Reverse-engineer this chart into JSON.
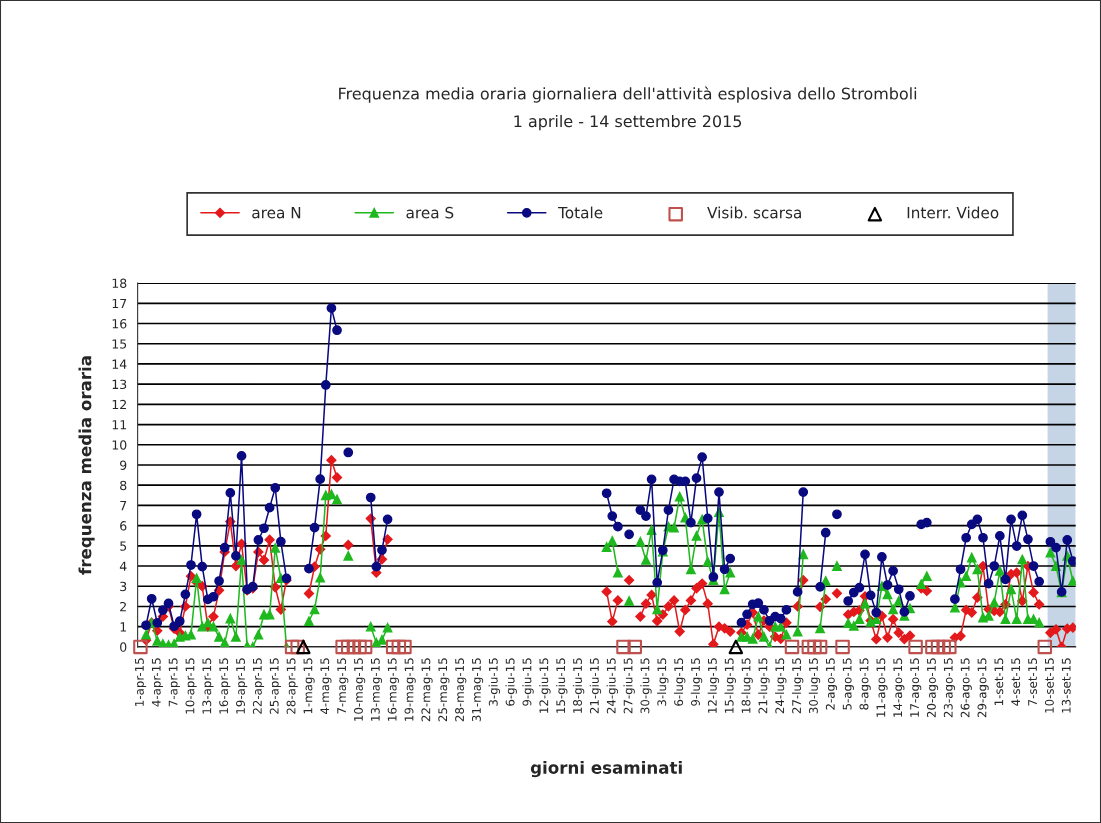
{
  "chart_data": {
    "type": "line",
    "title": "Frequenza media oraria giornaliera dell'attività esplosiva dello Stromboli",
    "subtitle": "1 aprile - 14 settembre 2015",
    "xlabel": "giorni esaminati",
    "ylabel": "frequenza media oraria",
    "x": [
      "2015-04-02",
      "2015-04-03",
      "2015-04-04",
      "2015-04-05",
      "2015-04-06",
      "2015-04-07",
      "2015-04-08",
      "2015-04-09",
      "2015-04-10",
      "2015-04-11",
      "2015-04-12",
      "2015-04-13",
      "2015-04-14",
      "2015-04-15",
      "2015-04-16",
      "2015-04-17",
      "2015-04-18",
      "2015-04-19",
      "2015-04-20",
      "2015-04-21",
      "2015-04-22",
      "2015-04-23",
      "2015-04-24",
      "2015-04-25",
      "2015-04-26",
      "2015-04-27",
      "2015-04-28",
      "2015-04-29",
      "2015-04-30",
      "2015-05-01",
      "2015-05-02",
      "2015-05-03",
      "2015-05-04",
      "2015-05-05",
      "2015-05-06",
      "2015-05-07",
      "2015-05-08",
      "2015-05-09",
      "2015-05-10",
      "2015-05-11",
      "2015-05-12",
      "2015-05-13",
      "2015-05-14",
      "2015-05-15",
      "2015-05-16",
      "2015-05-17",
      "2015-05-18",
      "2015-05-19",
      "2015-05-20",
      "2015-05-21",
      "2015-05-22",
      "2015-05-23",
      "2015-05-24",
      "2015-05-25",
      "2015-05-26",
      "2015-05-27",
      "2015-05-28",
      "2015-05-29",
      "2015-05-30",
      "2015-05-31",
      "2015-06-01",
      "2015-06-02",
      "2015-06-03",
      "2015-06-04",
      "2015-06-05",
      "2015-06-06",
      "2015-06-07",
      "2015-06-08",
      "2015-06-09",
      "2015-06-10",
      "2015-06-11",
      "2015-06-12",
      "2015-06-13",
      "2015-06-14",
      "2015-06-15",
      "2015-06-16",
      "2015-06-17",
      "2015-06-18",
      "2015-06-19",
      "2015-06-20",
      "2015-06-21",
      "2015-06-22",
      "2015-06-23",
      "2015-06-24",
      "2015-06-25",
      "2015-06-26",
      "2015-06-27",
      "2015-06-28",
      "2015-06-29",
      "2015-06-30",
      "2015-07-01",
      "2015-07-02",
      "2015-07-03",
      "2015-07-04",
      "2015-07-05",
      "2015-07-06",
      "2015-07-07",
      "2015-07-08",
      "2015-07-09",
      "2015-07-10",
      "2015-07-11",
      "2015-07-12",
      "2015-07-13",
      "2015-07-14",
      "2015-07-15",
      "2015-07-16",
      "2015-07-17",
      "2015-07-18",
      "2015-07-19",
      "2015-07-20",
      "2015-07-21",
      "2015-07-22",
      "2015-07-23",
      "2015-07-24",
      "2015-07-25",
      "2015-07-26",
      "2015-07-27",
      "2015-07-28",
      "2015-07-29",
      "2015-07-30",
      "2015-07-31",
      "2015-08-01",
      "2015-08-02",
      "2015-08-03",
      "2015-08-04",
      "2015-08-05",
      "2015-08-06",
      "2015-08-07",
      "2015-08-08",
      "2015-08-09",
      "2015-08-10",
      "2015-08-11",
      "2015-08-12",
      "2015-08-13",
      "2015-08-14",
      "2015-08-15",
      "2015-08-16",
      "2015-08-17",
      "2015-08-18",
      "2015-08-19",
      "2015-08-20",
      "2015-08-21",
      "2015-08-22",
      "2015-08-23",
      "2015-08-24",
      "2015-08-25",
      "2015-08-26",
      "2015-08-27",
      "2015-08-28",
      "2015-08-29",
      "2015-08-30",
      "2015-08-31",
      "2015-09-01",
      "2015-09-02",
      "2015-09-03",
      "2015-09-04",
      "2015-09-05",
      "2015-09-06",
      "2015-09-07",
      "2015-09-08",
      "2015-09-09",
      "2015-09-10",
      "2015-09-11",
      "2015-09-12",
      "2015-09-13",
      "2015-09-14"
    ],
    "series": [
      {
        "name": "area N",
        "color": "#e3191c",
        "marker": "diamond",
        "values": [
          0.33,
          1.2,
          0.8,
          1.5,
          2.0,
          0.9,
          0.7,
          2.0,
          3.5,
          3.2,
          3.0,
          1.0,
          1.5,
          2.8,
          4.7,
          6.2,
          4.0,
          5.1,
          2.8,
          2.9,
          4.7,
          4.3,
          5.3,
          2.95,
          1.85,
          3.3,
          null,
          null,
          null,
          2.64,
          3.97,
          4.83,
          5.49,
          9.24,
          8.38,
          null,
          5.04,
          null,
          null,
          null,
          6.35,
          3.67,
          4.33,
          5.32,
          null,
          null,
          null,
          null,
          null,
          null,
          null,
          null,
          null,
          null,
          null,
          null,
          null,
          null,
          null,
          null,
          null,
          null,
          null,
          null,
          null,
          null,
          null,
          null,
          null,
          null,
          null,
          null,
          null,
          null,
          null,
          null,
          null,
          null,
          null,
          null,
          null,
          null,
          2.73,
          1.25,
          2.3,
          null,
          3.3,
          null,
          1.5,
          2.14,
          2.57,
          1.28,
          1.6,
          2.0,
          2.3,
          0.76,
          1.83,
          2.3,
          2.9,
          3.13,
          2.14,
          0.13,
          1.0,
          0.92,
          0.76,
          null,
          0.7,
          1.1,
          1.7,
          0.6,
          1.3,
          1.0,
          0.5,
          0.4,
          1.2,
          null,
          2.0,
          3.3,
          null,
          null,
          1.98,
          2.36,
          null,
          2.65,
          null,
          1.6,
          1.73,
          1.8,
          2.5,
          1.3,
          0.38,
          1.53,
          0.46,
          1.37,
          0.7,
          0.38,
          0.55,
          null,
          2.9,
          2.77,
          null,
          null,
          null,
          null,
          0.46,
          0.54,
          1.83,
          1.7,
          2.44,
          4.0,
          1.86,
          1.78,
          1.73,
          2.1,
          3.6,
          3.67,
          2.27,
          4.0,
          2.69,
          2.1,
          null,
          0.7,
          0.87,
          0.0,
          0.9,
          0.95
        ]
      },
      {
        "name": "area S",
        "color": "#1fb81f",
        "marker": "triangle",
        "values": [
          0.6,
          1.2,
          0.3,
          0.15,
          0.1,
          0.15,
          0.5,
          0.55,
          0.6,
          3.4,
          1.0,
          1.2,
          1.0,
          0.5,
          0.2,
          1.4,
          0.5,
          4.3,
          0.05,
          0.0,
          0.6,
          1.6,
          1.6,
          4.9,
          3.4,
          0.0,
          null,
          null,
          null,
          1.27,
          1.85,
          3.42,
          7.5,
          7.55,
          7.3,
          null,
          4.5,
          null,
          null,
          null,
          1.0,
          0.2,
          0.35,
          0.95,
          null,
          null,
          null,
          null,
          null,
          null,
          null,
          null,
          null,
          null,
          null,
          null,
          null,
          null,
          null,
          null,
          null,
          null,
          null,
          null,
          null,
          null,
          null,
          null,
          null,
          null,
          null,
          null,
          null,
          null,
          null,
          null,
          null,
          null,
          null,
          null,
          null,
          null,
          4.94,
          5.24,
          3.67,
          null,
          2.27,
          null,
          5.2,
          4.3,
          5.78,
          1.86,
          4.71,
          5.95,
          5.9,
          7.43,
          6.39,
          3.84,
          5.49,
          6.31,
          4.22,
          3.3,
          6.67,
          2.85,
          3.67,
          null,
          0.5,
          0.5,
          0.4,
          1.5,
          0.5,
          0.0,
          1.0,
          1.0,
          0.6,
          null,
          0.76,
          4.58,
          null,
          null,
          0.92,
          3.26,
          null,
          4.0,
          null,
          1.17,
          1.04,
          1.37,
          2.14,
          1.24,
          1.37,
          3.0,
          2.6,
          1.86,
          2.27,
          1.53,
          1.9,
          null,
          3.1,
          3.5,
          null,
          null,
          null,
          null,
          1.94,
          3.18,
          3.5,
          4.42,
          3.84,
          1.45,
          1.53,
          2.2,
          3.76,
          1.37,
          2.85,
          1.37,
          4.33,
          1.37,
          1.37,
          1.2,
          null,
          4.66,
          4.0,
          2.7,
          4.5,
          3.26
        ]
      },
      {
        "name": "Totale",
        "color": "#0a0a80",
        "marker": "circle",
        "values": [
          1.07,
          2.38,
          1.19,
          1.82,
          2.15,
          1.02,
          1.27,
          2.6,
          4.05,
          6.56,
          3.97,
          2.35,
          2.48,
          3.26,
          4.91,
          7.62,
          4.5,
          9.45,
          2.84,
          2.98,
          5.29,
          5.87,
          6.89,
          7.87,
          5.21,
          3.39,
          null,
          null,
          null,
          3.87,
          5.9,
          8.3,
          12.96,
          16.76,
          15.67,
          null,
          9.62,
          null,
          null,
          null,
          7.39,
          3.97,
          4.79,
          6.31,
          null,
          null,
          null,
          null,
          null,
          null,
          null,
          null,
          null,
          null,
          null,
          null,
          null,
          null,
          null,
          null,
          null,
          null,
          null,
          null,
          null,
          null,
          null,
          null,
          null,
          null,
          null,
          null,
          null,
          null,
          null,
          null,
          null,
          null,
          null,
          null,
          null,
          null,
          7.6,
          6.47,
          5.95,
          null,
          5.57,
          null,
          6.77,
          6.47,
          8.29,
          3.18,
          4.78,
          6.77,
          8.29,
          8.19,
          8.19,
          6.15,
          8.35,
          9.39,
          6.36,
          3.46,
          7.66,
          3.84,
          4.37,
          null,
          1.2,
          1.61,
          2.11,
          2.16,
          1.83,
          1.29,
          1.5,
          1.4,
          1.83,
          null,
          2.72,
          7.66,
          null,
          null,
          2.97,
          5.65,
          null,
          6.56,
          null,
          2.27,
          2.69,
          2.93,
          4.58,
          2.55,
          1.7,
          4.45,
          3.06,
          3.76,
          2.85,
          1.73,
          2.52,
          null,
          6.06,
          6.15,
          null,
          null,
          null,
          null,
          2.36,
          3.84,
          5.4,
          6.06,
          6.31,
          5.4,
          3.13,
          4.0,
          5.49,
          3.34,
          6.31,
          4.99,
          6.51,
          5.32,
          4.0,
          3.23,
          null,
          5.2,
          4.91,
          2.72,
          5.29,
          4.25
        ]
      },
      {
        "name": "Visib. scarsa",
        "type": "scatter",
        "color": "#c0504d",
        "marker": "square",
        "x": [
          "2015-04-01",
          "2015-04-28",
          "2015-04-29",
          "2015-05-07",
          "2015-05-08",
          "2015-05-09",
          "2015-05-10",
          "2015-05-11",
          "2015-05-16",
          "2015-05-17",
          "2015-05-18",
          "2015-06-26",
          "2015-06-28",
          "2015-07-26",
          "2015-07-29",
          "2015-07-30",
          "2015-07-31",
          "2015-08-04",
          "2015-08-17",
          "2015-08-20",
          "2015-08-21",
          "2015-08-22",
          "2015-08-23",
          "2015-09-09"
        ],
        "values": [
          0,
          0,
          0,
          0,
          0,
          0,
          0,
          0,
          0,
          0,
          0,
          0,
          0,
          0,
          0,
          0,
          0,
          0,
          0,
          0,
          0,
          0,
          0,
          0
        ]
      },
      {
        "name": "Interr. Video",
        "type": "scatter",
        "color": "#000000",
        "marker": "triangle",
        "x": [
          "2015-04-30",
          "2015-07-16"
        ],
        "values": [
          0,
          0
        ]
      }
    ],
    "xlim": [
      "2015-03-31T12:00",
      "2015-09-14T12:00"
    ],
    "xticks": [
      {
        "value": "2015-04-01",
        "label": "1-apr-15"
      },
      {
        "value": "2015-04-04",
        "label": "4-apr-15"
      },
      {
        "value": "2015-04-07",
        "label": "7-apr-15"
      },
      {
        "value": "2015-04-10",
        "label": "10-apr-15"
      },
      {
        "value": "2015-04-13",
        "label": "13-apr-15"
      },
      {
        "value": "2015-04-16",
        "label": "16-apr-15"
      },
      {
        "value": "2015-04-19",
        "label": "19-apr-15"
      },
      {
        "value": "2015-04-22",
        "label": "22-apr-15"
      },
      {
        "value": "2015-04-25",
        "label": "25-apr-15"
      },
      {
        "value": "2015-04-28",
        "label": "28-apr-15"
      },
      {
        "value": "2015-05-01",
        "label": "1-mag-15"
      },
      {
        "value": "2015-05-04",
        "label": "4-mag-15"
      },
      {
        "value": "2015-05-07",
        "label": "7-mag-15"
      },
      {
        "value": "2015-05-10",
        "label": "10-mag-15"
      },
      {
        "value": "2015-05-13",
        "label": "13-mag-15"
      },
      {
        "value": "2015-05-16",
        "label": "16-mag-15"
      },
      {
        "value": "2015-05-19",
        "label": "19-mag-15"
      },
      {
        "value": "2015-05-22",
        "label": "22-mag-15"
      },
      {
        "value": "2015-05-25",
        "label": "25-mag-15"
      },
      {
        "value": "2015-05-28",
        "label": "28-mag-15"
      },
      {
        "value": "2015-05-31",
        "label": "31-mag-15"
      },
      {
        "value": "2015-06-03",
        "label": "3-giu-15"
      },
      {
        "value": "2015-06-06",
        "label": "6-giu-15"
      },
      {
        "value": "2015-06-09",
        "label": "9-giu-15"
      },
      {
        "value": "2015-06-12",
        "label": "12-giu-15"
      },
      {
        "value": "2015-06-15",
        "label": "15-giu-15"
      },
      {
        "value": "2015-06-18",
        "label": "18-giu-15"
      },
      {
        "value": "2015-06-21",
        "label": "21-giu-15"
      },
      {
        "value": "2015-06-24",
        "label": "24-giu-15"
      },
      {
        "value": "2015-06-27",
        "label": "27-giu-15"
      },
      {
        "value": "2015-06-30",
        "label": "30-giu-15"
      },
      {
        "value": "2015-07-03",
        "label": "3-lug-15"
      },
      {
        "value": "2015-07-06",
        "label": "6-lug-15"
      },
      {
        "value": "2015-07-09",
        "label": "9-lug-15"
      },
      {
        "value": "2015-07-12",
        "label": "12-lug-15"
      },
      {
        "value": "2015-07-15",
        "label": "15-lug-15"
      },
      {
        "value": "2015-07-18",
        "label": "18-lug-15"
      },
      {
        "value": "2015-07-21",
        "label": "21-lug-15"
      },
      {
        "value": "2015-07-24",
        "label": "24-lug-15"
      },
      {
        "value": "2015-07-27",
        "label": "27-lug-15"
      },
      {
        "value": "2015-07-30",
        "label": "30-lug-15"
      },
      {
        "value": "2015-08-02",
        "label": "2-ago-15"
      },
      {
        "value": "2015-08-05",
        "label": "5-ago-15"
      },
      {
        "value": "2015-08-08",
        "label": "8-ago-15"
      },
      {
        "value": "2015-08-11",
        "label": "11-ago-15"
      },
      {
        "value": "2015-08-14",
        "label": "14-ago-15"
      },
      {
        "value": "2015-08-17",
        "label": "17-ago-15"
      },
      {
        "value": "2015-08-20",
        "label": "20-ago-15"
      },
      {
        "value": "2015-08-23",
        "label": "23-ago-15"
      },
      {
        "value": "2015-08-26",
        "label": "26-ago-15"
      },
      {
        "value": "2015-08-29",
        "label": "29-ago-15"
      },
      {
        "value": "2015-09-01",
        "label": "1-set-15"
      },
      {
        "value": "2015-09-04",
        "label": "4-set-15"
      },
      {
        "value": "2015-09-07",
        "label": "7-set-15"
      },
      {
        "value": "2015-09-10",
        "label": "10-set-15"
      },
      {
        "value": "2015-09-13",
        "label": "13-set-15"
      }
    ],
    "ylim": [
      0,
      18
    ],
    "yticks": [
      0,
      1,
      2,
      3,
      4,
      5,
      6,
      7,
      8,
      9,
      10,
      11,
      12,
      13,
      14,
      15,
      16,
      17,
      18
    ],
    "bands": [
      {
        "axis": "x",
        "from": "2015-09-09T12:00",
        "to": "2015-09-14T12:00",
        "color": "#c6d5e6"
      }
    ],
    "grid": "y",
    "legend": "top",
    "line_style": "solid"
  }
}
